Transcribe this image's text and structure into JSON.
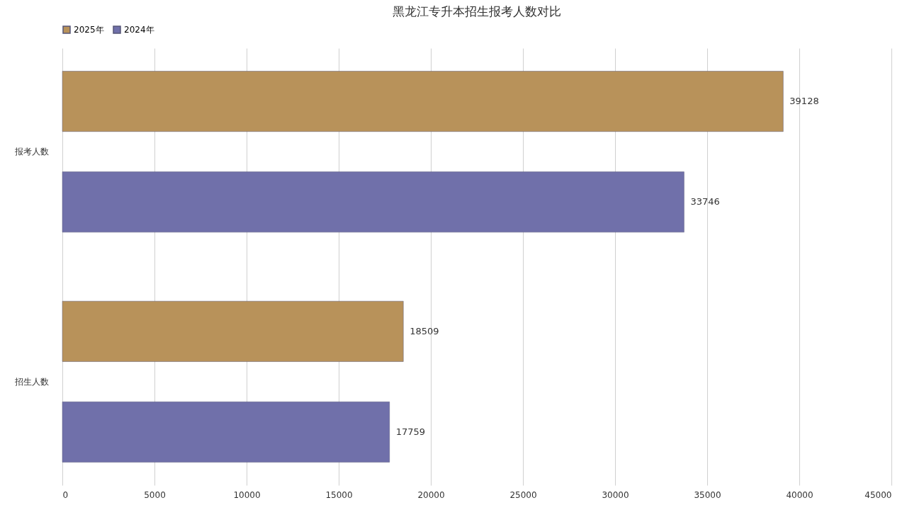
{
  "chart_data": {
    "type": "bar",
    "orientation": "horizontal",
    "title": "黑龙江专升本招生报考人数对比",
    "categories": [
      "报考人数",
      "招生人数"
    ],
    "series": [
      {
        "name": "2025年",
        "color": "#b8925a",
        "values": [
          39128,
          18509
        ]
      },
      {
        "name": "2024年",
        "color": "#7070aa",
        "values": [
          33746,
          17759
        ]
      }
    ],
    "xlim": [
      0,
      45000
    ],
    "xticks": [
      0,
      5000,
      10000,
      15000,
      20000,
      25000,
      30000,
      35000,
      40000,
      45000
    ],
    "grid": "x",
    "legend": "top",
    "data_labels": true
  }
}
